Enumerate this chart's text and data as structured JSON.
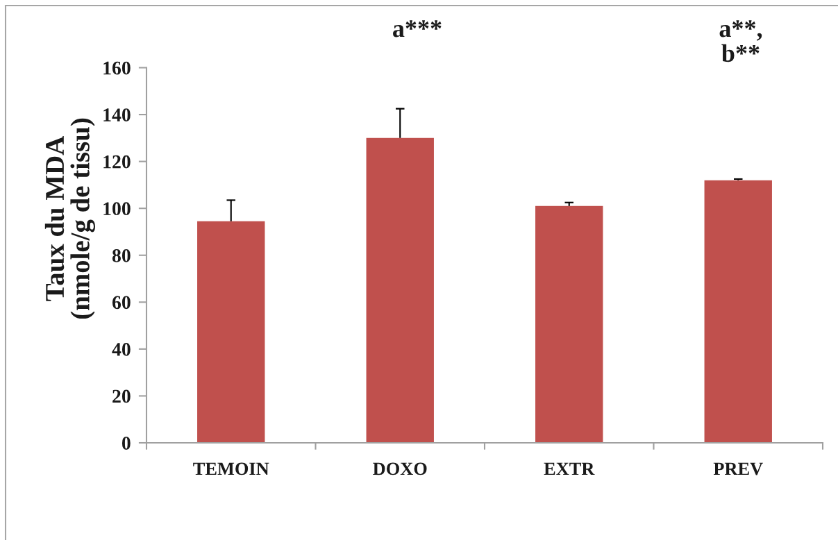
{
  "chart_data": {
    "type": "bar",
    "ylabel": "Taux du MDA\n(nmole/g de tissu)",
    "categories": [
      "TEMOIN",
      "DOXO",
      "EXTR",
      "PREV"
    ],
    "values": [
      94.5,
      130,
      101,
      112
    ],
    "color": "#c0504d",
    "errors": [
      [
        94.5,
        103.5
      ],
      [
        130,
        142.5
      ],
      [
        101,
        102.5
      ],
      [
        112,
        112.5
      ]
    ],
    "ylim": [
      0,
      160
    ],
    "yticks": [
      0,
      20,
      40,
      60,
      80,
      100,
      120,
      140,
      160
    ],
    "annotations": [
      "a***",
      "a**,\nb**"
    ]
  }
}
